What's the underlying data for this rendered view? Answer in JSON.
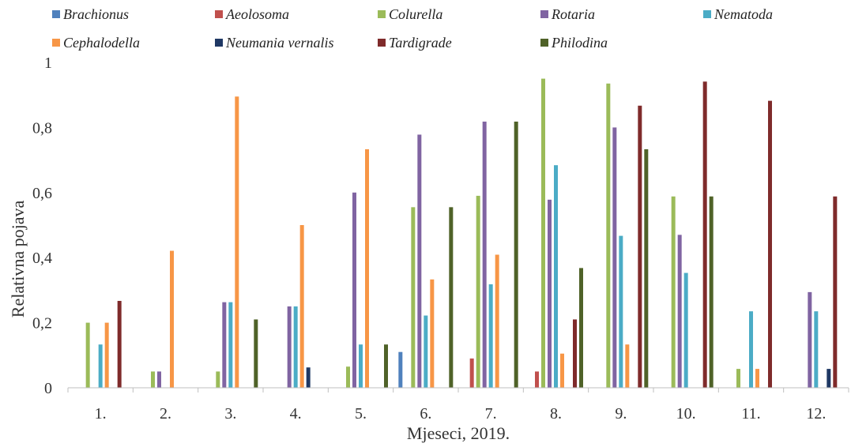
{
  "chart_data": {
    "type": "bar",
    "title": "",
    "xlabel": "Mjeseci, 2019.",
    "ylabel": "Relativna pojava",
    "ylim": [
      0,
      1
    ],
    "yticks": [
      0,
      0.2,
      0.4,
      0.6,
      0.8,
      1
    ],
    "ytick_labels": [
      "0",
      "0,2",
      "0,4",
      "0,6",
      "0,8",
      "1"
    ],
    "grid": false,
    "legend_position": "top",
    "categories": [
      "1.",
      "2.",
      "3.",
      "4.",
      "5.",
      "6.",
      "7.",
      "8.",
      "9.",
      "10.",
      "11.",
      "12."
    ],
    "series": [
      {
        "name": "Brachionus",
        "color": "#4f81bd",
        "values": [
          0,
          0,
          0,
          0,
          0,
          0.11,
          0,
          0,
          0,
          0,
          0,
          0
        ]
      },
      {
        "name": "Aeolosoma",
        "color": "#c0504d",
        "values": [
          0,
          0,
          0,
          0,
          0,
          0,
          0.09,
          0.05,
          0,
          0,
          0,
          0
        ]
      },
      {
        "name": "Colurella",
        "color": "#9bbb59",
        "values": [
          0.2,
          0.05,
          0.05,
          0,
          0.065,
          0.555,
          0.59,
          0.95,
          0.935,
          0.588,
          0.058,
          0
        ]
      },
      {
        "name": "Rotaria",
        "color": "#8064a2",
        "values": [
          0,
          0.05,
          0.263,
          0.25,
          0.6,
          0.778,
          0.818,
          0.578,
          0.8,
          0.47,
          0,
          0.294
        ]
      },
      {
        "name": "Nematoda",
        "color": "#4bacc6",
        "values": [
          0.133,
          0,
          0.263,
          0.25,
          0.133,
          0.222,
          0.318,
          0.684,
          0.467,
          0.353,
          0.235,
          0.235
        ]
      },
      {
        "name": "Cephalodella",
        "color": "#f79646",
        "values": [
          0.2,
          0.421,
          0.895,
          0.5,
          0.733,
          0.333,
          0.409,
          0.105,
          0.133,
          0,
          0.058,
          0
        ]
      },
      {
        "name": "Neumania vernalis",
        "color": "#1f3864",
        "values": [
          0,
          0,
          0,
          0.0625,
          0,
          0,
          0,
          0,
          0,
          0,
          0,
          0.058
        ]
      },
      {
        "name": "Tardigrade",
        "color": "#7f2b2b",
        "values": [
          0.267,
          0,
          0,
          0,
          0,
          0,
          0,
          0.21,
          0.867,
          0.941,
          0.882,
          0.588
        ]
      },
      {
        "name": "Philodina",
        "color": "#4f6228",
        "values": [
          0,
          0,
          0.21,
          0,
          0.133,
          0.555,
          0.818,
          0.368,
          0.733,
          0.588,
          0,
          0
        ]
      }
    ]
  }
}
